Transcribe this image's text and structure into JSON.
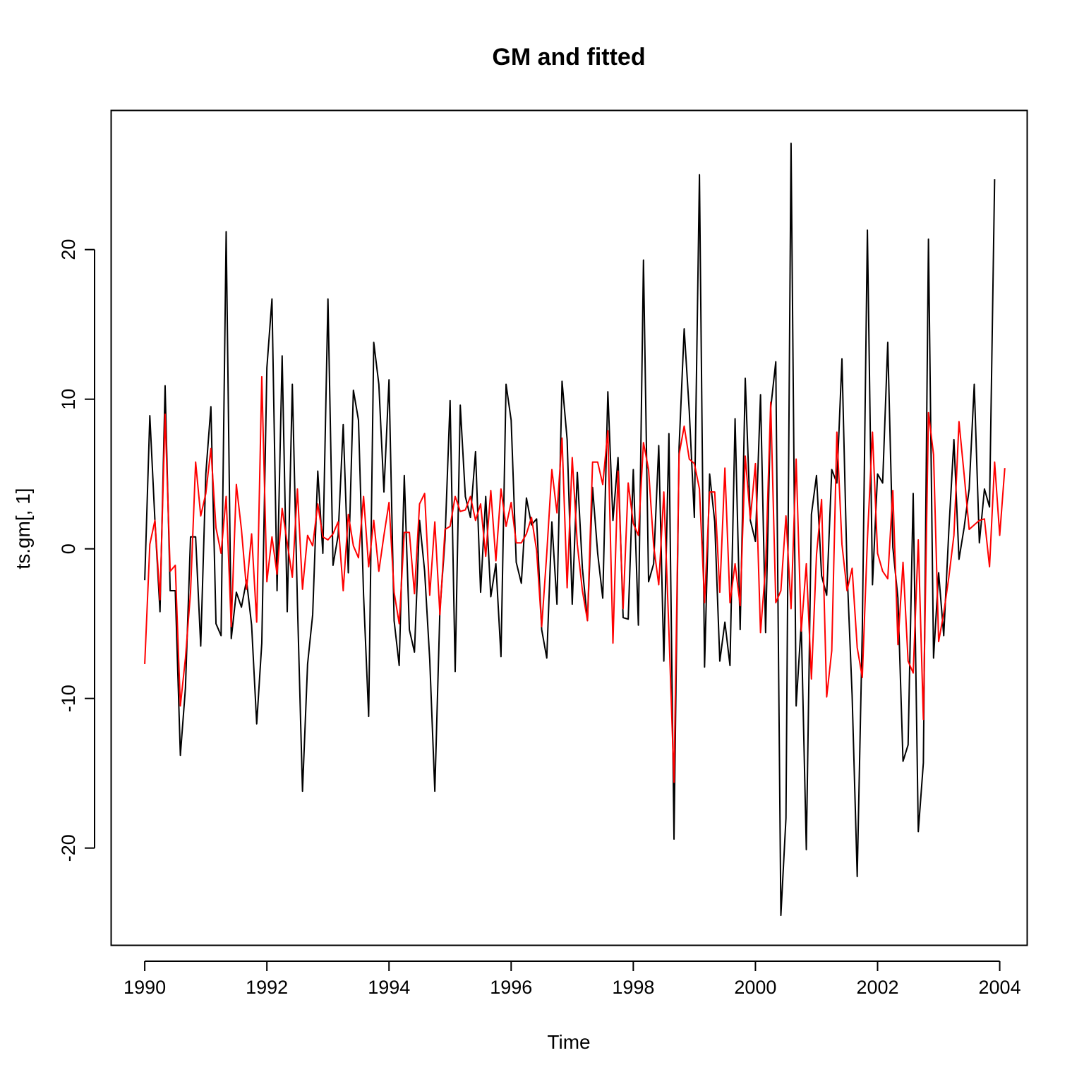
{
  "chart_data": {
    "type": "line",
    "title": "GM and fitted",
    "xlabel": "Time",
    "ylabel": "ts.gm[, 1]",
    "xlim": [
      1989.45,
      2004.45
    ],
    "ylim": [
      -26.5,
      29.3
    ],
    "x_ticks": [
      1990,
      1992,
      1994,
      1996,
      1998,
      2000,
      2002,
      2004
    ],
    "x_tick_labels": [
      "1990",
      "1992",
      "1994",
      "1996",
      "1998",
      "2000",
      "2002",
      "2004"
    ],
    "y_ticks": [
      -20,
      -10,
      0,
      10,
      20
    ],
    "y_tick_labels": [
      "-20",
      "-10",
      "0",
      "10",
      "20"
    ],
    "grid": false,
    "legend": false,
    "x_start": 1990,
    "frequency": 12,
    "series": [
      {
        "color": "#000000",
        "values": [
          -2.1,
          8.9,
          1.9,
          -4.2,
          10.9,
          -2.8,
          -2.8,
          -13.8,
          -9.3,
          0.8,
          0.8,
          -6.5,
          5.0,
          9.5,
          -5.0,
          -5.8,
          21.2,
          -6.0,
          -2.9,
          -3.9,
          -2.1,
          -5.1,
          -11.7,
          -6.3,
          12.1,
          16.7,
          -2.8,
          12.9,
          -4.2,
          11.0,
          -3.6,
          -16.2,
          -7.7,
          -4.4,
          5.2,
          -0.3,
          16.7,
          -1.1,
          0.9,
          8.3,
          -1.6,
          10.6,
          8.6,
          -3.1,
          -11.2,
          13.8,
          11.0,
          3.8,
          11.3,
          -4.8,
          -7.8,
          4.9,
          -5.4,
          -6.9,
          1.9,
          -1.5,
          -7.4,
          -16.2,
          -4.1,
          0.6,
          9.9,
          -8.2,
          9.6,
          3.5,
          2.1,
          6.5,
          -2.9,
          3.5,
          -3.2,
          -1.0,
          -7.2,
          11.0,
          8.6,
          -0.9,
          -2.3,
          3.4,
          1.6,
          2.0,
          -5.4,
          -7.3,
          1.8,
          -3.7,
          11.2,
          7.3,
          -3.7,
          5.1,
          -1.3,
          -4.8,
          4.1,
          -0.3,
          -3.3,
          10.5,
          1.9,
          6.1,
          -4.6,
          -4.7,
          5.3,
          -5.1,
          19.3,
          -2.2,
          -1.0,
          6.9,
          -7.5,
          7.7,
          -19.4,
          6.8,
          14.7,
          9.2,
          2.1,
          25.0,
          -7.9,
          5.0,
          1.8,
          -7.5,
          -4.9,
          -7.8,
          8.7,
          -5.4,
          11.4,
          1.9,
          0.5,
          10.3,
          -5.6,
          9.4,
          12.5,
          -24.5,
          -18.0,
          27.1,
          -10.5,
          -5.0,
          -20.1,
          2.3,
          4.9,
          -1.8,
          -3.1,
          5.3,
          4.4,
          12.7,
          -1.4,
          -9.8,
          -21.9,
          -5.4,
          21.3,
          -2.4,
          5.0,
          4.4,
          13.8,
          0.1,
          -3.3,
          -14.2,
          -13.1,
          3.7,
          -18.9,
          -14.3,
          20.7,
          -7.3,
          -1.6,
          -5.8,
          1.2,
          7.3,
          -0.7,
          1.4,
          4.0,
          11.0,
          0.4,
          4.0,
          2.8,
          24.7
        ]
      },
      {
        "color": "#ff0000",
        "values": [
          -7.7,
          0.3,
          1.9,
          -3.4,
          9.0,
          -1.5,
          -1.1,
          -10.5,
          -7.3,
          -2.9,
          5.8,
          2.2,
          3.7,
          6.7,
          1.4,
          -0.3,
          3.5,
          -5.2,
          4.3,
          1.3,
          -2.7,
          1.0,
          -4.9,
          11.5,
          -2.2,
          0.8,
          -1.7,
          2.7,
          0.4,
          -1.9,
          4.0,
          -2.7,
          0.9,
          0.2,
          3.0,
          0.8,
          0.6,
          1.0,
          1.8,
          -2.8,
          2.3,
          0.2,
          -0.6,
          3.5,
          -1.2,
          1.9,
          -1.5,
          0.9,
          3.1,
          -2.9,
          -5.0,
          1.1,
          1.1,
          -3.0,
          3.0,
          3.7,
          -3.1,
          1.8,
          -4.4,
          1.3,
          1.5,
          3.5,
          2.5,
          2.6,
          3.5,
          1.9,
          3.0,
          -0.5,
          3.9,
          -0.8,
          4.0,
          1.5,
          3.1,
          0.4,
          0.4,
          1.0,
          2.1,
          -0.1,
          -5.2,
          -0.3,
          5.3,
          2.4,
          7.4,
          -2.6,
          6.1,
          0.3,
          -2.8,
          -4.8,
          5.8,
          5.8,
          4.3,
          7.9,
          -6.3,
          5.2,
          -4.0,
          4.4,
          1.7,
          0.9,
          7.1,
          5.3,
          0.2,
          -2.4,
          3.8,
          -5.5,
          -15.6,
          6.3,
          8.2,
          6.0,
          5.7,
          4.0,
          -3.6,
          3.8,
          3.8,
          -2.9,
          5.4,
          -3.6,
          -1.0,
          -3.8,
          6.2,
          2.0,
          5.7,
          -5.6,
          -1.2,
          9.8,
          -3.6,
          -2.8,
          2.2,
          -4.0,
          6.0,
          -5.5,
          -1.0,
          -8.7,
          -0.4,
          3.3,
          -9.9,
          -6.8,
          7.8,
          0.3,
          -2.8,
          -1.3,
          -6.6,
          -8.6,
          0.6,
          7.8,
          -0.3,
          -1.5,
          -2.0,
          3.9,
          -6.4,
          -0.9,
          -7.5,
          -8.3,
          0.6,
          -11.4,
          9.1,
          6.3,
          -6.2,
          -4.3,
          -1.9,
          0.9,
          8.5,
          5.0,
          1.3,
          1.6,
          1.9,
          2.0,
          -1.2,
          5.8,
          0.9,
          5.4
        ]
      }
    ]
  }
}
